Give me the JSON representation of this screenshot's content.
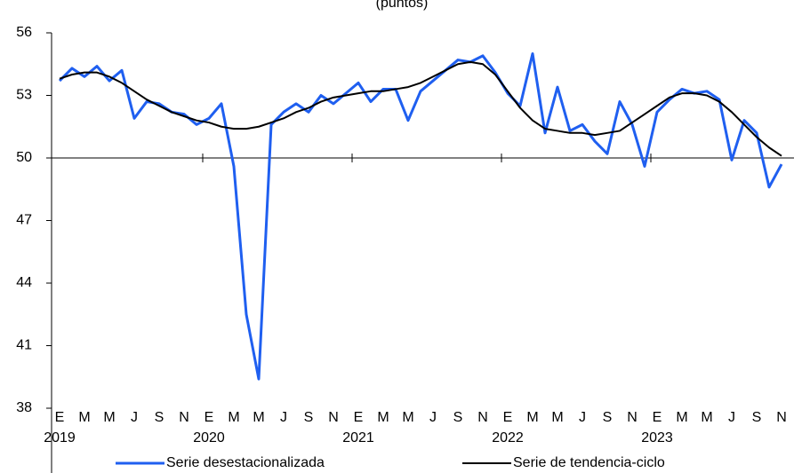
{
  "chart_data": {
    "type": "line",
    "subtitle": "(puntos)",
    "categories": [
      "E",
      null,
      "M",
      null,
      "M",
      null,
      "J",
      null,
      "S",
      null,
      "N",
      null,
      "E",
      null,
      "M",
      null,
      "M",
      null,
      "J",
      null,
      "S",
      null,
      "N",
      null,
      "E",
      null,
      "M",
      null,
      "M",
      null,
      "J",
      null,
      "S",
      null,
      "N",
      null,
      "E",
      null,
      "M",
      null,
      "M",
      null,
      "J",
      null,
      "S",
      null,
      "N",
      null,
      "E",
      null,
      "M",
      null,
      "M",
      null,
      "J",
      null,
      "S",
      null,
      "N"
    ],
    "years": [
      "2019",
      "2020",
      "2021",
      "2022",
      "2023"
    ],
    "series": [
      {
        "name": "Serie desestacionalizada",
        "color": "#1f5ff0",
        "values": [
          53.7,
          54.3,
          53.9,
          54.4,
          53.7,
          54.2,
          51.9,
          52.7,
          52.6,
          52.2,
          52.1,
          51.6,
          51.9,
          52.6,
          49.6,
          42.5,
          39.4,
          51.6,
          52.2,
          52.6,
          52.2,
          53.0,
          52.6,
          53.1,
          53.6,
          52.7,
          53.3,
          53.3,
          51.8,
          53.2,
          53.7,
          54.2,
          54.7,
          54.6,
          54.9,
          54.1,
          53.1,
          52.5,
          55.0,
          51.2,
          53.4,
          51.3,
          51.6,
          50.8,
          50.2,
          52.7,
          51.6,
          49.6,
          52.2,
          52.8,
          53.3,
          53.1,
          53.2,
          52.8,
          49.9,
          51.8,
          51.2,
          48.6,
          49.7
        ]
      },
      {
        "name": "Serie de tendencia-ciclo",
        "color": "#000000",
        "values": [
          53.8,
          54.0,
          54.1,
          54.1,
          53.9,
          53.6,
          53.2,
          52.8,
          52.5,
          52.2,
          52.0,
          51.8,
          51.7,
          51.5,
          51.4,
          51.4,
          51.5,
          51.7,
          51.9,
          52.2,
          52.4,
          52.7,
          52.9,
          53.0,
          53.1,
          53.2,
          53.2,
          53.3,
          53.4,
          53.6,
          53.9,
          54.2,
          54.5,
          54.6,
          54.5,
          54.0,
          53.2,
          52.4,
          51.8,
          51.4,
          51.3,
          51.2,
          51.2,
          51.1,
          51.2,
          51.3,
          51.7,
          52.1,
          52.5,
          52.9,
          53.1,
          53.1,
          53.0,
          52.7,
          52.2,
          51.6,
          51.0,
          50.5,
          50.1
        ]
      }
    ],
    "ylim": [
      38,
      56
    ],
    "yticks": [
      38,
      41,
      44,
      47,
      50,
      53,
      56
    ],
    "x_axis_at": 50,
    "grid": false,
    "legend": "bottom"
  }
}
